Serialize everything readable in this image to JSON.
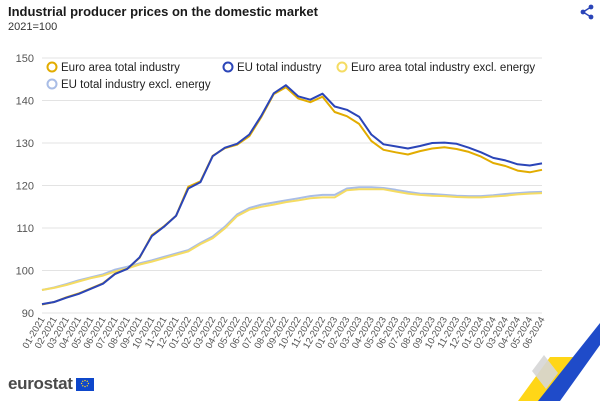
{
  "header": {
    "title": "Industrial producer prices on the domestic market",
    "subtitle": "2021=100",
    "share_icon": "share-icon"
  },
  "footer": {
    "logo_text": "eurostat"
  },
  "colors": {
    "ea_total": "#e2ac00",
    "eu_total": "#2b45b8",
    "ea_excl": "#f5dc63",
    "eu_excl": "#a9bde6",
    "grid": "#e3e3e3"
  },
  "chart_data": {
    "type": "line",
    "title": "Industrial producer prices on the domestic market",
    "subtitle": "2021=100",
    "ylim": [
      90,
      150
    ],
    "yticks": [
      90,
      100,
      110,
      120,
      130,
      140,
      150
    ],
    "grid": true,
    "legend_position": "top-left",
    "x": [
      "01-2021",
      "02-2021",
      "03-2021",
      "04-2021",
      "05-2021",
      "06-2021",
      "07-2021",
      "08-2021",
      "09-2021",
      "10-2021",
      "11-2021",
      "12-2021",
      "01-2022",
      "02-2022",
      "03-2022",
      "04-2022",
      "05-2022",
      "06-2022",
      "07-2022",
      "08-2022",
      "09-2022",
      "10-2022",
      "11-2022",
      "12-2022",
      "01-2023",
      "02-2023",
      "03-2023",
      "04-2023",
      "05-2023",
      "06-2023",
      "07-2023",
      "08-2023",
      "09-2023",
      "10-2023",
      "11-2023",
      "12-2023",
      "01-2024",
      "02-2024",
      "03-2024",
      "04-2024",
      "05-2024",
      "06-2024"
    ],
    "x_tick_labels": [
      "01-2021",
      "02-2021",
      "03-2021",
      "04-2021",
      "05-2021",
      "06-2021",
      "07-2021",
      "08-2021",
      "09-2021",
      "10-2021",
      "11-2021",
      "12-2021",
      "01-2022",
      "02-2022",
      "03-2022",
      "04-2022",
      "05-2022",
      "06-2022",
      "07-2022",
      "08-2022",
      "09-2022",
      "10-2022",
      "11-2022",
      "12-2022",
      "01-2023",
      "02-2023",
      "03-2023",
      "04-2023",
      "05-2023",
      "06-2023",
      "07-2023",
      "08-2023",
      "09-2023",
      "10-2023",
      "11-2023",
      "12-2023",
      "01-2024",
      "02-2024",
      "03-2024",
      "04-2024",
      "05-2024",
      "06-2024"
    ],
    "series": [
      {
        "name": "Euro area total industry",
        "color": "#e2ac00",
        "values": [
          92.0,
          92.6,
          93.7,
          94.6,
          95.8,
          97.0,
          99.3,
          100.4,
          103.0,
          108.3,
          110.4,
          112.9,
          119.7,
          121.0,
          127.0,
          128.8,
          129.6,
          131.6,
          136.2,
          141.5,
          143.1,
          140.5,
          139.6,
          140.9,
          137.3,
          136.3,
          134.5,
          130.5,
          128.4,
          127.8,
          127.3,
          128.1,
          128.7,
          129.0,
          128.6,
          127.9,
          126.8,
          125.3,
          124.6,
          123.5,
          123.1,
          123.7
        ]
      },
      {
        "name": "EU total industry",
        "color": "#2b45b8",
        "values": [
          92.1,
          92.6,
          93.6,
          94.5,
          95.7,
          96.9,
          99.2,
          100.4,
          103.1,
          108.1,
          110.3,
          112.9,
          119.3,
          120.8,
          126.9,
          128.9,
          129.8,
          132.0,
          136.5,
          141.7,
          143.6,
          141.0,
          140.2,
          141.6,
          138.6,
          137.8,
          136.2,
          132.0,
          129.7,
          129.2,
          128.7,
          129.3,
          130.0,
          130.1,
          129.8,
          128.9,
          127.8,
          126.5,
          125.9,
          125.0,
          124.7,
          125.2
        ]
      },
      {
        "name": "Euro area total industry excl. energy",
        "color": "#f5dc63",
        "values": [
          95.4,
          95.9,
          96.6,
          97.4,
          98.2,
          98.8,
          99.8,
          100.5,
          101.4,
          102.1,
          102.9,
          103.7,
          104.5,
          106.2,
          107.6,
          109.9,
          112.8,
          114.3,
          115.0,
          115.5,
          116.1,
          116.5,
          117.0,
          117.2,
          117.2,
          118.9,
          119.1,
          119.1,
          119.1,
          118.6,
          118.1,
          117.8,
          117.6,
          117.5,
          117.3,
          117.2,
          117.2,
          117.4,
          117.6,
          117.9,
          118.1,
          118.2
        ]
      },
      {
        "name": "EU total industry excl. energy",
        "color": "#a9bde6",
        "values": [
          95.4,
          96.0,
          96.8,
          97.7,
          98.4,
          99.1,
          100.2,
          100.9,
          101.7,
          102.4,
          103.2,
          104.0,
          104.8,
          106.5,
          108.0,
          110.3,
          113.2,
          114.7,
          115.5,
          116.0,
          116.5,
          117.0,
          117.5,
          117.8,
          117.8,
          119.3,
          119.6,
          119.6,
          119.4,
          119.0,
          118.5,
          118.1,
          118.0,
          117.8,
          117.6,
          117.5,
          117.5,
          117.7,
          118.0,
          118.2,
          118.4,
          118.5
        ]
      }
    ]
  }
}
